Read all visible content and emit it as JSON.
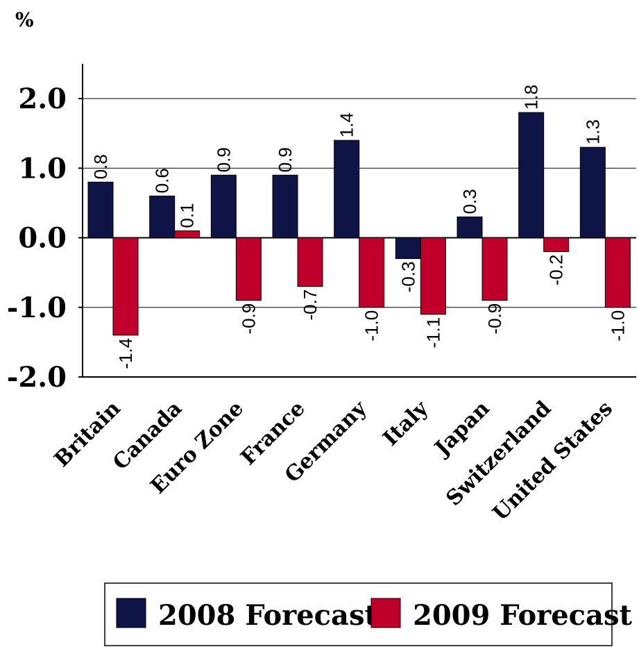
{
  "chart_data": {
    "type": "bar",
    "unit_label": "%",
    "categories": [
      "Britain",
      "Canada",
      "Euro Zone",
      "France",
      "Germany",
      "Italy",
      "Japan",
      "Switzerland",
      "United States"
    ],
    "series": [
      {
        "name": "2008 Forecast",
        "color": "#0f1446",
        "values": [
          0.8,
          0.6,
          0.9,
          0.9,
          1.4,
          -0.3,
          0.3,
          1.8,
          1.3
        ]
      },
      {
        "name": "2009 Forecast",
        "color": "#c0002a",
        "values": [
          -1.4,
          0.1,
          -0.9,
          -0.7,
          -1.0,
          -1.1,
          -0.9,
          -0.2,
          -1.0
        ]
      }
    ],
    "data_labels": [
      [
        "0.8",
        "0.6",
        "0.9",
        "0.9",
        "1.4",
        "-0.3",
        "0.3",
        "1.8",
        "1.3"
      ],
      [
        "-1.4",
        "0.1",
        "-0.9",
        "-0.7",
        "-1.0",
        "-1.1",
        "-0.9",
        "-0.2",
        "-1.0"
      ]
    ],
    "ylim": [
      -2.0,
      2.0
    ],
    "yticks": [
      2.0,
      1.0,
      0.0,
      -1.0,
      -2.0
    ],
    "ytick_labels": [
      "2.0",
      "1.0",
      "0.0",
      "-1.0",
      "-2.0"
    ],
    "grid": true,
    "legend_position": "bottom-right"
  }
}
